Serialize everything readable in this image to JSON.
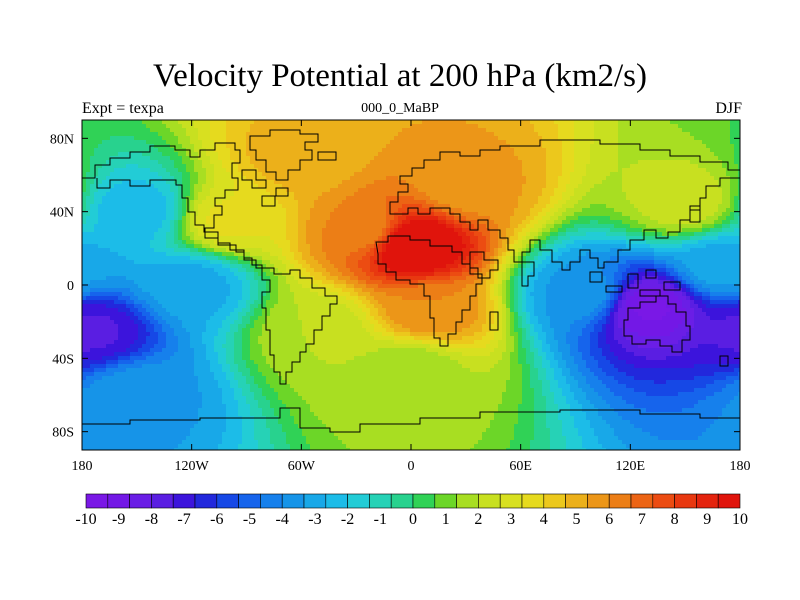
{
  "chart_data": {
    "type": "heatmap",
    "title": "Velocity Potential at 200 hPa (km2/s)",
    "left_string": "Expt = texpa",
    "center_string": "000_0_MaBP",
    "right_string": "DJF",
    "units": "km2/s",
    "projection": "cylindrical equidistant",
    "xlim": [
      -180,
      180
    ],
    "ylim": [
      -90,
      90
    ],
    "x_ticks": [
      {
        "value": -180,
        "label": "180"
      },
      {
        "value": -120,
        "label": "120W"
      },
      {
        "value": -60,
        "label": "60W"
      },
      {
        "value": 0,
        "label": "0"
      },
      {
        "value": 60,
        "label": "60E"
      },
      {
        "value": 120,
        "label": "120E"
      },
      {
        "value": 180,
        "label": "180"
      }
    ],
    "y_ticks": [
      {
        "value": 80,
        "label": "80N"
      },
      {
        "value": 40,
        "label": "40N"
      },
      {
        "value": 0,
        "label": "0"
      },
      {
        "value": -40,
        "label": "40S"
      },
      {
        "value": -80,
        "label": "80S"
      }
    ],
    "colorbar": {
      "levels": [
        -10,
        -9,
        -8,
        -7,
        -6,
        -5,
        -4,
        -3,
        -2,
        -1,
        0,
        1,
        2,
        3,
        4,
        5,
        6,
        7,
        8,
        9,
        10
      ],
      "labels": [
        "-10",
        "-9",
        "-8",
        "-7",
        "-6",
        "-5",
        "-4",
        "-3",
        "-2",
        "-1",
        "0",
        "1",
        "2",
        "3",
        "4",
        "5",
        "6",
        "7",
        "8",
        "9",
        "10"
      ],
      "colors": [
        "#7a18e6",
        "#7318e6",
        "#6a1ee6",
        "#5a1ee2",
        "#3c14dc",
        "#2228dc",
        "#1648e6",
        "#1664ec",
        "#1680ec",
        "#1694e8",
        "#18a8e8",
        "#1cbce8",
        "#22ccd6",
        "#26d2b6",
        "#28d28e",
        "#30d256",
        "#6cd628",
        "#a8de22",
        "#c8e020",
        "#d8e020",
        "#e6da1e",
        "#ecc81c",
        "#ecb01a",
        "#ec9618",
        "#ec7e16",
        "#ec6414",
        "#ec4c12",
        "#e83810",
        "#e4240e",
        "#e0140c"
      ]
    },
    "field_centers": [
      {
        "lon": 0,
        "lat": 22,
        "value": 11.0,
        "note": "maximum over North Africa / Arabia"
      },
      {
        "lon": -25,
        "lat": 30,
        "value": 6.0
      },
      {
        "lon": 30,
        "lat": 55,
        "value": 5.5
      },
      {
        "lon": 10,
        "lat": -15,
        "value": 6.0
      },
      {
        "lon": -60,
        "lat": 70,
        "value": 5.0
      },
      {
        "lon": -100,
        "lat": 35,
        "value": 3.5
      },
      {
        "lon": -50,
        "lat": -25,
        "value": 2.0
      },
      {
        "lon": 0,
        "lat": -45,
        "value": 1.5
      },
      {
        "lon": 130,
        "lat": -12,
        "value": -9.5,
        "note": "minimum over maritime continent / Australia"
      },
      {
        "lon": 95,
        "lat": -5,
        "value": -3.5
      },
      {
        "lon": 170,
        "lat": 10,
        "value": -3.0
      },
      {
        "lon": -175,
        "lat": -25,
        "value": -7.5
      },
      {
        "lon": -150,
        "lat": 40,
        "value": -2.5
      },
      {
        "lon": -120,
        "lat": 0,
        "value": -3.0
      },
      {
        "lon": 150,
        "lat": 45,
        "value": 2.5
      },
      {
        "lon": -150,
        "lat": -60,
        "value": -3.5
      }
    ]
  }
}
